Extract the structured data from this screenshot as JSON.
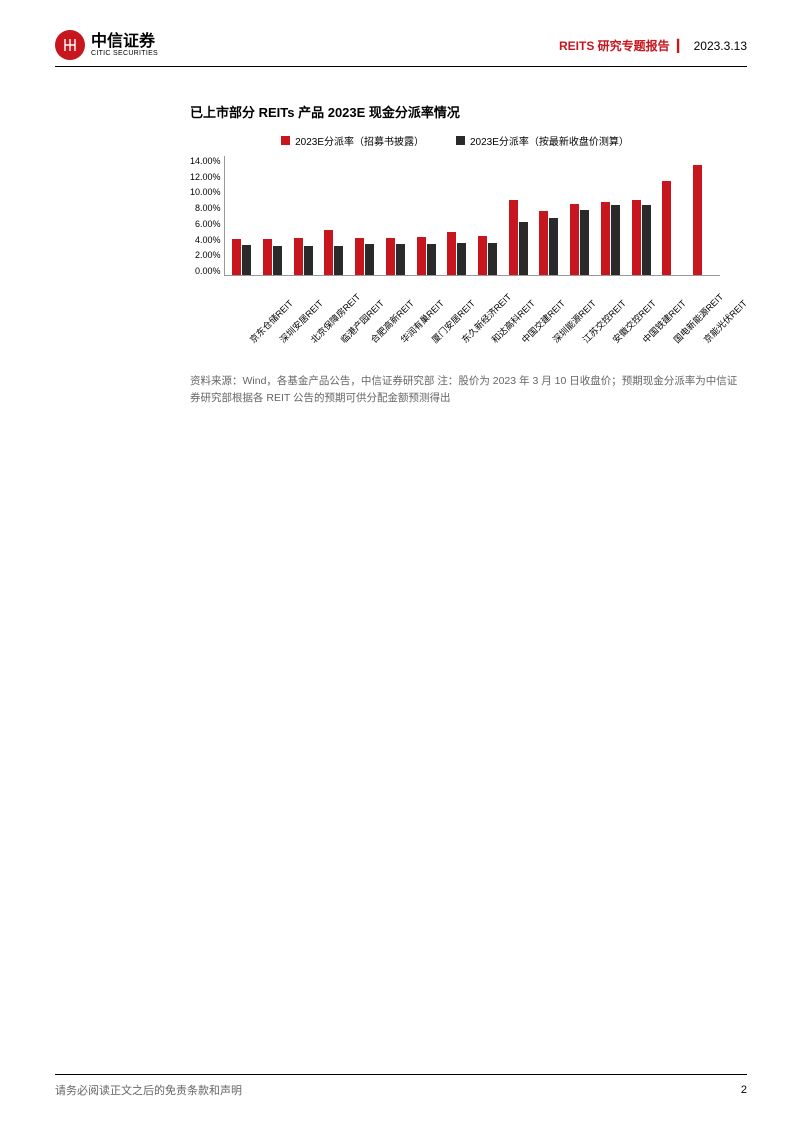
{
  "header": {
    "logo_cn": "中信证券",
    "logo_en": "CITIC SECURITIES",
    "report_type": "REITS 研究专题报告",
    "date": "2023.3.13"
  },
  "chart": {
    "type": "bar",
    "title": "已上市部分 REITs 产品 2023E 现金分派率情况",
    "legend": [
      {
        "label": "2023E分派率（招募书披露）",
        "color": "#c7161d"
      },
      {
        "label": "2023E分派率（按最新收盘价测算）",
        "color": "#2a2a2a"
      }
    ],
    "ylim": [
      0,
      14
    ],
    "ytick_step": 2,
    "yticks": [
      "0.00%",
      "2.00%",
      "4.00%",
      "6.00%",
      "8.00%",
      "10.00%",
      "12.00%",
      "14.00%"
    ],
    "categories": [
      "京东仓储REIT",
      "深圳安居REIT",
      "北京保障房REIT",
      "临港产园REIT",
      "合肥高新REIT",
      "华润有巢REIT",
      "厦门安居REIT",
      "东久新经济REIT",
      "和达高科REIT",
      "中国交建REIT",
      "深圳能源REIT",
      "江苏交控REIT",
      "安徽交控REIT",
      "中国铁建REIT",
      "国电新能源REIT",
      "京能光伏REIT"
    ],
    "series": [
      {
        "name": "prospectus",
        "color": "#c7161d",
        "values": [
          4.2,
          4.2,
          4.3,
          5.2,
          4.3,
          4.3,
          4.4,
          5.0,
          4.6,
          8.8,
          7.5,
          8.3,
          8.5,
          8.8,
          11.0,
          12.8
        ]
      },
      {
        "name": "latest_close",
        "color": "#2a2a2a",
        "values": [
          3.5,
          3.4,
          3.4,
          3.4,
          3.6,
          3.6,
          3.6,
          3.7,
          3.7,
          6.2,
          6.7,
          7.6,
          8.2,
          8.2,
          null,
          null
        ]
      }
    ],
    "background_color": "#ffffff",
    "grid": false
  },
  "source_note": "资料来源：Wind，各基金产品公告，中信证券研究部  注：股价为 2023 年 3 月 10 日收盘价；预期现金分派率为中信证券研究部根据各 REIT 公告的预期可供分配金额预测得出",
  "footer": {
    "disclaimer": "请务必阅读正文之后的免责条款和声明",
    "page": "2"
  }
}
